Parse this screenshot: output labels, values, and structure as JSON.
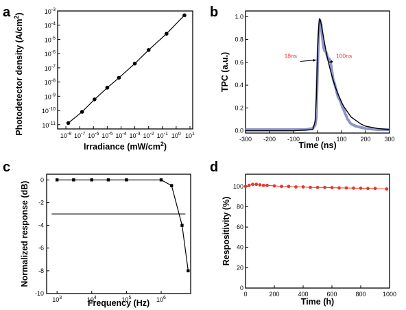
{
  "chart_data": [
    {
      "panel": "a",
      "type": "line",
      "x_scale": "log",
      "y_scale": "log",
      "xlabel": "Irradiance (mW/cm",
      "xlabel_sup": "2",
      "xlabel_end": ")",
      "ylabel": "Photodetector density (A/cm",
      "ylabel_sup": "2",
      "ylabel_end": ")",
      "x_ticks": [
        {
          "b": "10",
          "e": "-8"
        },
        {
          "b": "10",
          "e": "-7"
        },
        {
          "b": "10",
          "e": "-6"
        },
        {
          "b": "10",
          "e": "-5"
        },
        {
          "b": "10",
          "e": "-4"
        },
        {
          "b": "10",
          "e": "-3"
        },
        {
          "b": "10",
          "e": "-2"
        },
        {
          "b": "10",
          "e": "-1"
        },
        {
          "b": "10",
          "e": "0"
        },
        {
          "b": "10",
          "e": "1"
        }
      ],
      "y_ticks": [
        {
          "b": "10",
          "e": "-11"
        },
        {
          "b": "10",
          "e": "-10"
        },
        {
          "b": "10",
          "e": "-9"
        },
        {
          "b": "10",
          "e": "-8"
        },
        {
          "b": "10",
          "e": "-7"
        },
        {
          "b": "10",
          "e": "-6"
        },
        {
          "b": "10",
          "e": "-5"
        },
        {
          "b": "10",
          "e": "-4"
        },
        {
          "b": "10",
          "e": "-3"
        }
      ],
      "xlim_exp": [
        -8.6,
        1.2
      ],
      "ylim_exp": [
        -11.3,
        -3.0
      ],
      "x": [
        1.5e-08,
        1.5e-07,
        1.2e-06,
        1e-05,
        7e-05,
        0.001,
        0.01,
        0.2,
        4.0
      ],
      "y": [
        1.3e-11,
        8e-11,
        6e-10,
        4e-09,
        2e-08,
        2e-07,
        1.8e-06,
        2.5e-05,
        0.0005
      ],
      "color": "#000000"
    },
    {
      "panel": "b",
      "type": "line",
      "xlabel": "Time (ns)",
      "ylabel": "TPC (a.u.)",
      "x_ticks": [
        "-300",
        "-200",
        "-100",
        "0",
        "100",
        "200",
        "300"
      ],
      "y_ticks": [
        "0.0",
        "0.2",
        "0.4",
        "0.6",
        "0.8",
        "1.0"
      ],
      "xlim": [
        -300,
        300
      ],
      "ylim": [
        -0.02,
        1.05
      ],
      "annotations": [
        {
          "text": "18ns",
          "x": -112,
          "y": 0.62,
          "arrow_to": [
            -5,
            0.62
          ]
        },
        {
          "text": "100ns",
          "x": 110,
          "y": 0.62,
          "arrow_to": [
            48,
            0.6
          ]
        }
      ],
      "series": [
        {
          "role": "measured",
          "color": "#8f95c9",
          "x": [
            -300,
            -150,
            -50,
            -20,
            -10,
            -5,
            0,
            5,
            10,
            15,
            20,
            25,
            30,
            35,
            40,
            45,
            50,
            55,
            60,
            65,
            70,
            75,
            80,
            85,
            90,
            95,
            100,
            105,
            110,
            115,
            120,
            125,
            130,
            135,
            140,
            150,
            160,
            180,
            200,
            250,
            300
          ],
          "y": [
            0.01,
            0.01,
            0.01,
            0.02,
            0.05,
            0.12,
            0.55,
            0.85,
            0.97,
            0.93,
            0.82,
            0.73,
            0.7,
            0.69,
            0.66,
            0.62,
            0.63,
            0.59,
            0.52,
            0.45,
            0.42,
            0.38,
            0.34,
            0.3,
            0.28,
            0.26,
            0.23,
            0.2,
            0.18,
            0.15,
            0.13,
            0.1,
            0.09,
            0.07,
            0.06,
            0.05,
            0.04,
            0.03,
            0.02,
            0.01,
            0.01
          ]
        },
        {
          "role": "fit",
          "color": "#000000",
          "x": [
            -300,
            -100,
            -20,
            -10,
            -5,
            0,
            5,
            8,
            12,
            20,
            30,
            40,
            50,
            60,
            70,
            80,
            90,
            100,
            110,
            120,
            130,
            140,
            160,
            180,
            200,
            250,
            300
          ],
          "y": [
            0.0,
            0.0,
            0.01,
            0.08,
            0.3,
            0.7,
            0.92,
            0.98,
            0.97,
            0.88,
            0.76,
            0.65,
            0.56,
            0.48,
            0.41,
            0.35,
            0.3,
            0.25,
            0.21,
            0.18,
            0.15,
            0.12,
            0.09,
            0.06,
            0.04,
            0.02,
            0.01
          ]
        }
      ]
    },
    {
      "panel": "c",
      "type": "line",
      "x_scale": "log",
      "xlabel": "Frequency (Hz)",
      "ylabel": "Normalized response (dB)",
      "x_ticks": [
        {
          "b": "10",
          "e": "3"
        },
        {
          "b": "10",
          "e": "4"
        },
        {
          "b": "10",
          "e": "5"
        },
        {
          "b": "10",
          "e": "6"
        }
      ],
      "y_ticks": [
        "0",
        "-2",
        "-4",
        "-6",
        "-8",
        "-10"
      ],
      "xlim_exp": [
        2.7,
        6.85
      ],
      "ylim": [
        -10,
        0.5
      ],
      "x": [
        1000,
        3000,
        10000,
        30000,
        100000,
        1000000,
        2000000,
        4000000,
        6000000
      ],
      "y": [
        0,
        0,
        0,
        0,
        0,
        0,
        -0.5,
        -4,
        -8
      ],
      "reference_line": {
        "y": -3,
        "x": [
          700,
          5000000
        ]
      },
      "color": "#000000"
    },
    {
      "panel": "d",
      "type": "line",
      "xlabel": "Time (h)",
      "ylabel": "Respositivity (%)",
      "x_ticks": [
        "0",
        "200",
        "400",
        "600",
        "800",
        "1000"
      ],
      "y_ticks": [
        "0",
        "20",
        "40",
        "60",
        "80",
        "100"
      ],
      "xlim": [
        0,
        1000
      ],
      "ylim": [
        0,
        112
      ],
      "x": [
        0,
        25,
        50,
        75,
        100,
        125,
        150,
        200,
        250,
        300,
        350,
        400,
        450,
        500,
        550,
        600,
        650,
        700,
        750,
        800,
        850,
        900,
        980
      ],
      "y": [
        100,
        101,
        102,
        102,
        101.5,
        101,
        101,
        100.5,
        100,
        100,
        99.5,
        99.5,
        99,
        99,
        99,
        98.8,
        98.5,
        98.5,
        98.3,
        98.2,
        98,
        98,
        97.5
      ],
      "color": "#e8382a"
    }
  ],
  "panel_labels": [
    "a",
    "b",
    "c",
    "d"
  ]
}
